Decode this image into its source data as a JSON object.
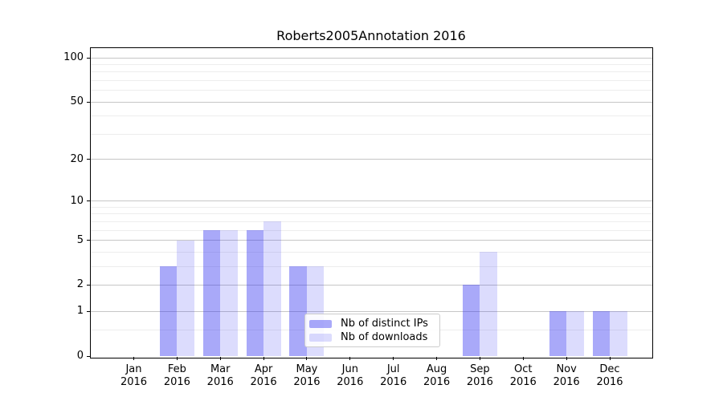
{
  "page": {
    "background": "#ffffff"
  },
  "chart_data": {
    "type": "bar",
    "title": "Roberts2005Annotation 2016",
    "categories": [
      "Jan 2016",
      "Feb 2016",
      "Mar 2016",
      "Apr 2016",
      "May 2016",
      "Jun 2016",
      "Jul 2016",
      "Aug 2016",
      "Sep 2016",
      "Oct 2016",
      "Nov 2016",
      "Dec 2016"
    ],
    "series": [
      {
        "name": "Nb of distinct IPs",
        "color": "rgba(40,40,240,0.40)",
        "values": [
          0,
          3,
          6,
          6,
          3,
          0,
          0,
          0,
          2,
          0,
          1,
          1
        ]
      },
      {
        "name": "Nb of downloads",
        "color": "rgba(40,40,240,0.16)",
        "values": [
          0,
          5,
          6,
          7,
          3,
          0,
          0,
          0,
          4,
          0,
          1,
          1
        ]
      }
    ],
    "xlabel": "",
    "ylabel": "",
    "yscale": "log1p",
    "ylim": [
      0,
      117
    ],
    "yticks_major": [
      0,
      1,
      2,
      5,
      10,
      20,
      50,
      100
    ],
    "yticks_minor": [
      0.5,
      3,
      4,
      6,
      7,
      8,
      9,
      30,
      40,
      60,
      70,
      80,
      90
    ],
    "grid": "major+minor",
    "legend_position": "lower center (inside plot)"
  },
  "colors": {
    "grid_major": "#c6c6c6",
    "grid_minor": "#ededed",
    "axis": "#000000",
    "legend_border": "#cccccc",
    "legend_background": "rgba(255,255,255,0.85)"
  }
}
